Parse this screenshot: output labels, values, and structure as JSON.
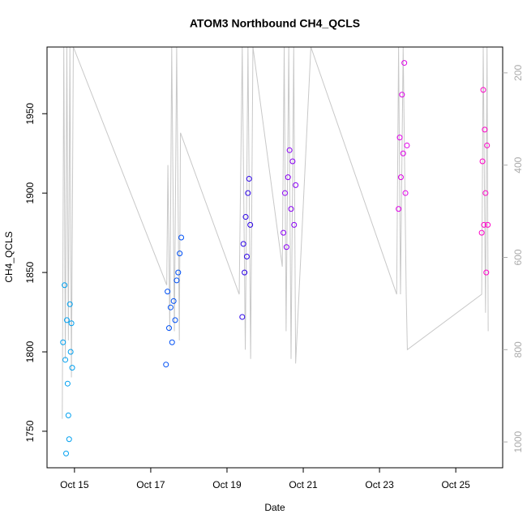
{
  "chart_data": {
    "type": "scatter",
    "title": "ATOM3 Northbound CH4_QCLS",
    "x_label": "Date",
    "y_label": "CH4_QCLS",
    "xlim": [
      14.28,
      26.23
    ],
    "xticks": [
      {
        "value": 15,
        "label": "Oct 15"
      },
      {
        "value": 17,
        "label": "Oct 17"
      },
      {
        "value": 19,
        "label": "Oct 19"
      },
      {
        "value": 21,
        "label": "Oct 21"
      },
      {
        "value": 23,
        "label": "Oct 23"
      },
      {
        "value": 25,
        "label": "Oct 25"
      }
    ],
    "ylim": [
      1727,
      1992
    ],
    "yticks": [
      1750,
      1800,
      1850,
      1900,
      1950
    ],
    "y2lim": [
      1056,
      144
    ],
    "y2ticks": [
      200,
      400,
      600,
      800,
      1000
    ],
    "series": [
      {
        "color": "#00a0f0",
        "x": [
          14.7,
          14.74,
          14.76,
          14.78,
          14.8,
          14.82,
          14.84,
          14.86,
          14.88,
          14.9,
          14.92,
          14.94
        ],
        "values": [
          1806,
          1842,
          1795,
          1736,
          1820,
          1780,
          1760,
          1745,
          1830,
          1800,
          1818,
          1790
        ]
      },
      {
        "color": "#0050f5",
        "x": [
          17.4,
          17.44,
          17.48,
          17.52,
          17.56,
          17.6,
          17.64,
          17.68,
          17.72,
          17.76,
          17.8
        ],
        "values": [
          1792,
          1838,
          1815,
          1828,
          1806,
          1832,
          1820,
          1845,
          1850,
          1862,
          1872
        ]
      },
      {
        "color": "#2a00e8",
        "x": [
          19.4,
          19.43,
          19.46,
          19.49,
          19.52,
          19.55,
          19.58,
          19.61
        ],
        "values": [
          1822,
          1868,
          1850,
          1885,
          1860,
          1900,
          1909,
          1880
        ]
      },
      {
        "color": "#8a00f5",
        "x": [
          20.48,
          20.52,
          20.56,
          20.6,
          20.64,
          20.68,
          20.72,
          20.76,
          20.8
        ],
        "values": [
          1875,
          1900,
          1866,
          1910,
          1927,
          1890,
          1920,
          1880,
          1905
        ]
      },
      {
        "color": "#e000e8",
        "x": [
          23.5,
          23.53,
          23.56,
          23.59,
          23.62,
          23.65,
          23.68,
          23.72
        ],
        "values": [
          1890,
          1935,
          1910,
          1962,
          1925,
          1982,
          1900,
          1930
        ]
      },
      {
        "color": "#ff00c8",
        "x": [
          25.68,
          25.7,
          25.72,
          25.74,
          25.76,
          25.78,
          25.8,
          25.82,
          25.84
        ],
        "values": [
          1875,
          1920,
          1965,
          1880,
          1940,
          1900,
          1850,
          1930,
          1880
        ]
      },
      {
        "axis": "y2",
        "color": "#c8c8c8",
        "x": [
          14.68,
          14.72,
          14.76,
          14.8,
          14.84,
          14.88,
          14.92,
          14.97,
          17.42,
          17.45,
          17.5,
          17.55,
          17.62,
          17.68,
          17.75,
          17.78,
          19.32,
          19.4,
          19.48,
          19.55,
          19.62,
          19.68,
          20.45,
          20.5,
          20.55,
          20.62,
          20.68,
          20.75,
          20.8,
          21.2,
          23.45,
          23.5,
          23.55,
          23.62,
          23.7,
          23.73,
          25.68,
          25.72,
          25.78,
          25.82,
          25.85
        ],
        "values": [
          950,
          144,
          820,
          144,
          780,
          144,
          860,
          144,
          660,
          400,
          760,
          144,
          760,
          144,
          780,
          330,
          680,
          144,
          800,
          144,
          820,
          144,
          620,
          144,
          760,
          144,
          820,
          144,
          830,
          144,
          680,
          144,
          680,
          144,
          680,
          800,
          680,
          144,
          720,
          144,
          760
        ]
      }
    ]
  }
}
